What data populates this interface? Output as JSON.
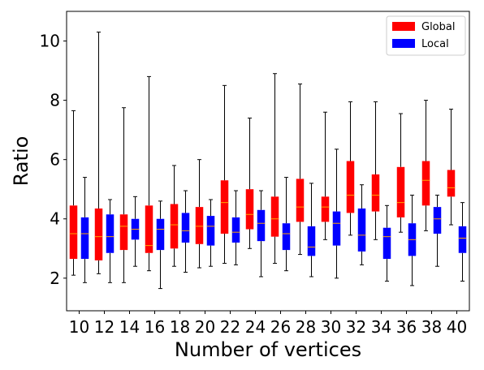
{
  "chart_data": {
    "type": "boxplot",
    "xlabel": "Number of vertices",
    "ylabel": "Ratio",
    "categories": [
      "10",
      "12",
      "14",
      "16",
      "18",
      "20",
      "22",
      "24",
      "26",
      "28",
      "30",
      "32",
      "34",
      "36",
      "38",
      "40"
    ],
    "ylim": [
      0.9,
      11.0
    ],
    "yticks": [
      2,
      4,
      6,
      8,
      10
    ],
    "legend": {
      "position": "top-right",
      "entries": [
        {
          "label": "Global",
          "color": "#ff0000"
        },
        {
          "label": "Local",
          "color": "#0000ff"
        }
      ]
    },
    "series": [
      {
        "name": "Global",
        "color": "#ff0000",
        "median_color": "#ffa500",
        "boxes": [
          {
            "whislo": 2.1,
            "q1": 2.65,
            "med": 3.5,
            "q3": 4.45,
            "whishi": 7.65
          },
          {
            "whislo": 2.15,
            "q1": 2.6,
            "med": 3.4,
            "q3": 4.35,
            "whishi": 10.3
          },
          {
            "whislo": 1.85,
            "q1": 2.95,
            "med": 3.75,
            "q3": 4.15,
            "whishi": 7.75
          },
          {
            "whislo": 2.25,
            "q1": 2.85,
            "med": 3.1,
            "q3": 4.45,
            "whishi": 8.8
          },
          {
            "whislo": 2.4,
            "q1": 3.0,
            "med": 3.8,
            "q3": 4.5,
            "whishi": 5.8
          },
          {
            "whislo": 2.35,
            "q1": 3.15,
            "med": 3.75,
            "q3": 4.4,
            "whishi": 6.0
          },
          {
            "whislo": 2.5,
            "q1": 3.5,
            "med": 4.55,
            "q3": 5.3,
            "whishi": 8.5
          },
          {
            "whislo": 3.0,
            "q1": 3.65,
            "med": 4.15,
            "q3": 5.0,
            "whishi": 7.4
          },
          {
            "whislo": 2.5,
            "q1": 3.4,
            "med": 4.0,
            "q3": 4.75,
            "whishi": 8.9
          },
          {
            "whislo": 2.8,
            "q1": 3.9,
            "med": 4.4,
            "q3": 5.35,
            "whishi": 8.55
          },
          {
            "whislo": 3.3,
            "q1": 3.9,
            "med": 4.4,
            "q3": 4.75,
            "whishi": 7.6
          },
          {
            "whislo": 3.45,
            "q1": 4.2,
            "med": 4.8,
            "q3": 5.95,
            "whishi": 7.95
          },
          {
            "whislo": 3.3,
            "q1": 4.25,
            "med": 4.8,
            "q3": 5.5,
            "whishi": 7.95
          },
          {
            "whislo": 3.55,
            "q1": 4.05,
            "med": 4.55,
            "q3": 5.75,
            "whishi": 7.55
          },
          {
            "whislo": 3.6,
            "q1": 4.45,
            "med": 5.3,
            "q3": 5.95,
            "whishi": 8.0
          },
          {
            "whislo": 3.8,
            "q1": 4.75,
            "med": 5.05,
            "q3": 5.65,
            "whishi": 7.7
          }
        ]
      },
      {
        "name": "Local",
        "color": "#0000ff",
        "median_color": "#ffa500",
        "boxes": [
          {
            "whislo": 1.85,
            "q1": 2.65,
            "med": 3.5,
            "q3": 4.05,
            "whishi": 5.4
          },
          {
            "whislo": 1.85,
            "q1": 2.85,
            "med": 3.4,
            "q3": 4.15,
            "whishi": 4.65
          },
          {
            "whislo": 2.4,
            "q1": 3.3,
            "med": 3.65,
            "q3": 4.0,
            "whishi": 4.75
          },
          {
            "whislo": 1.65,
            "q1": 2.95,
            "med": 3.65,
            "q3": 4.0,
            "whishi": 4.6
          },
          {
            "whislo": 2.2,
            "q1": 3.2,
            "med": 3.6,
            "q3": 4.2,
            "whishi": 4.95
          },
          {
            "whislo": 2.4,
            "q1": 3.1,
            "med": 3.75,
            "q3": 4.1,
            "whishi": 4.65
          },
          {
            "whislo": 2.45,
            "q1": 3.2,
            "med": 3.55,
            "q3": 4.05,
            "whishi": 4.95
          },
          {
            "whislo": 2.05,
            "q1": 3.25,
            "med": 3.85,
            "q3": 4.3,
            "whishi": 4.95
          },
          {
            "whislo": 2.25,
            "q1": 2.95,
            "med": 3.5,
            "q3": 3.85,
            "whishi": 5.4
          },
          {
            "whislo": 2.05,
            "q1": 2.75,
            "med": 3.05,
            "q3": 3.75,
            "whishi": 5.2
          },
          {
            "whislo": 2.0,
            "q1": 3.1,
            "med": 3.85,
            "q3": 4.25,
            "whishi": 6.35
          },
          {
            "whislo": 2.45,
            "q1": 2.9,
            "med": 3.45,
            "q3": 4.35,
            "whishi": 5.15
          },
          {
            "whislo": 1.9,
            "q1": 2.65,
            "med": 3.4,
            "q3": 3.7,
            "whishi": 4.45
          },
          {
            "whislo": 1.75,
            "q1": 2.75,
            "med": 3.3,
            "q3": 3.85,
            "whishi": 4.8
          },
          {
            "whislo": 2.4,
            "q1": 3.5,
            "med": 4.0,
            "q3": 4.4,
            "whishi": 4.8
          },
          {
            "whislo": 1.9,
            "q1": 2.85,
            "med": 3.35,
            "q3": 3.75,
            "whishi": 4.55
          }
        ]
      }
    ]
  }
}
